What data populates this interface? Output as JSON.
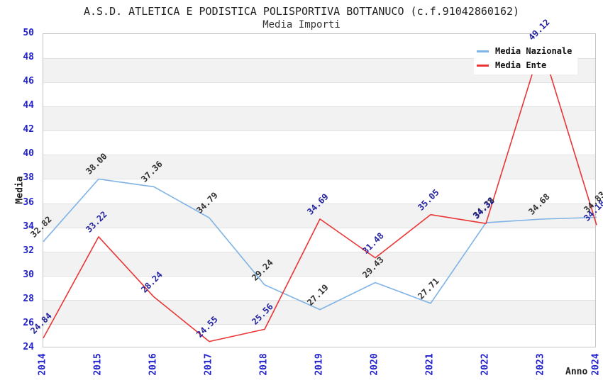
{
  "title": "A.S.D. ATLETICA E PODISTICA POLISPORTIVA BOTTANUCO (c.f.91042860162)",
  "subtitle": "Media Importi",
  "chart_data": {
    "type": "line",
    "x": [
      2014,
      2015,
      2016,
      2017,
      2018,
      2019,
      2020,
      2021,
      2022,
      2023,
      2024
    ],
    "xlabel": "Anno",
    "ylabel": "Media",
    "ylim": [
      24,
      50
    ],
    "ytick_step": 2,
    "grid": "horizontal-alternating-bands",
    "legend_position": "top-right",
    "series": [
      {
        "name": "Media Nazionale",
        "color": "#7fb2e5",
        "label_color": "#303030",
        "values": [
          32.82,
          38.0,
          37.36,
          34.79,
          29.24,
          27.19,
          29.43,
          27.71,
          34.38,
          34.68,
          34.83
        ]
      },
      {
        "name": "Media Ente",
        "color": "#e93535",
        "label_color": "#2222a0",
        "values": [
          24.84,
          33.22,
          28.24,
          24.55,
          25.56,
          34.69,
          31.48,
          35.05,
          34.32,
          49.12,
          34.18
        ]
      }
    ],
    "colors": {
      "tick_labels": "#2222cc",
      "band_gray": "#f2f2f2",
      "gridline": "#e2e2e2",
      "frame": "#c4c4c4",
      "title_text": "#222222"
    }
  }
}
